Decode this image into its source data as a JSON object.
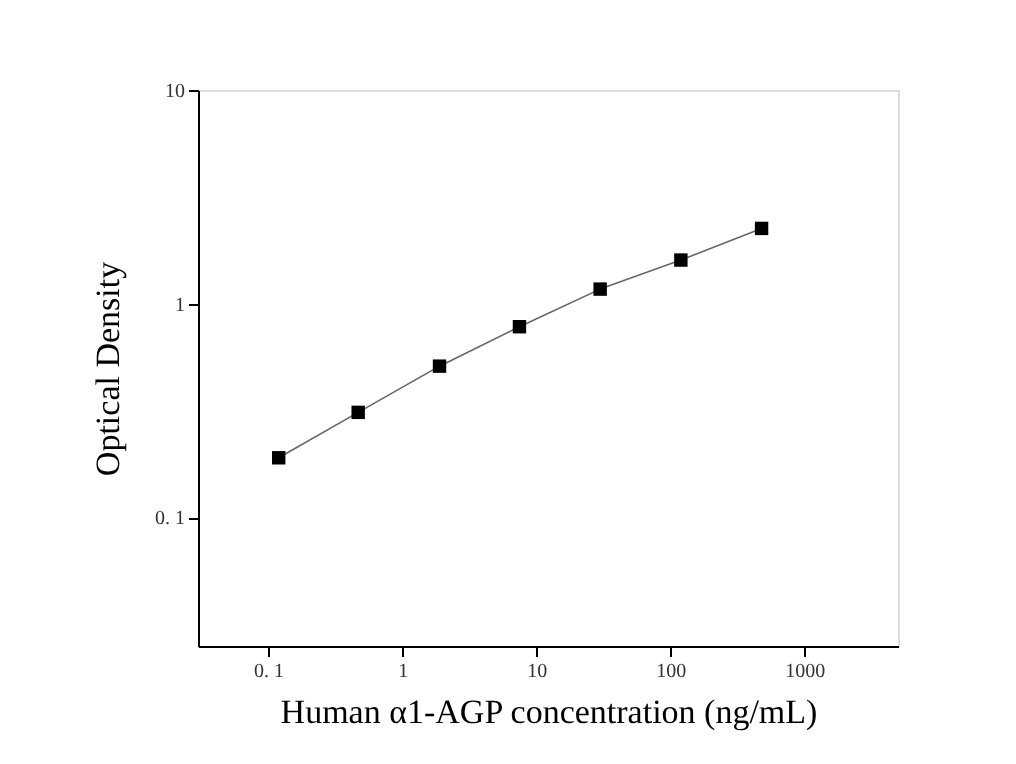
{
  "chart_data": {
    "type": "line",
    "xlabel": "Human α1-AGP concentration (ng/mL)",
    "ylabel": "Optical Density",
    "x": [
      0.12,
      0.47,
      1.9,
      7.5,
      30,
      120,
      480
    ],
    "series": [
      {
        "color": "#000000",
        "values": [
          0.19,
          0.31,
          0.51,
          0.78,
          1.17,
          1.6,
          2.25
        ]
      }
    ],
    "log": "xy",
    "marker": "square",
    "line_style": "solid",
    "xlim": [
      0.03,
      5000
    ],
    "ylim": [
      0.025,
      10
    ],
    "xticks": [
      {
        "value": 0.1,
        "label": "0. 1"
      },
      1,
      10,
      100,
      1000
    ],
    "yticks": [
      {
        "value": 0.1,
        "label": "0. 1"
      },
      1,
      10
    ]
  }
}
